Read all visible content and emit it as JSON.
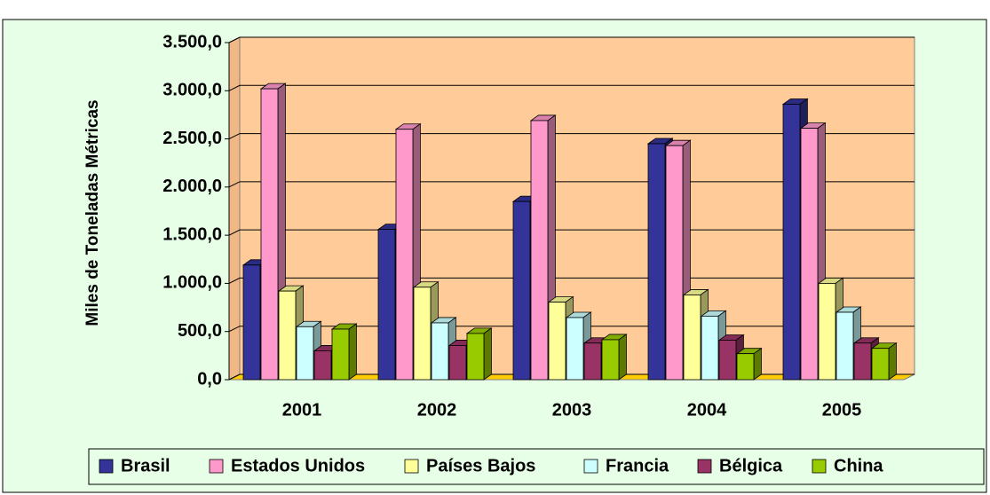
{
  "chart_data": {
    "type": "bar3d",
    "y_axis_label": "Miles de Toneladas Métricas",
    "categories": [
      "2001",
      "2002",
      "2003",
      "2004",
      "2005"
    ],
    "series": [
      {
        "name": "Brasil",
        "color": "#333399",
        "values": [
          1190,
          1560,
          1850,
          2450,
          2860
        ]
      },
      {
        "name": "Estados Unidos",
        "color": "#ff99cc",
        "values": [
          3020,
          2600,
          2690,
          2430,
          2610
        ]
      },
      {
        "name": "Países Bajos",
        "color": "#ffff99",
        "values": [
          920,
          960,
          805,
          880,
          1000
        ]
      },
      {
        "name": "Francia",
        "color": "#ccffff",
        "values": [
          550,
          590,
          645,
          660,
          700
        ]
      },
      {
        "name": "Bélgica",
        "color": "#993366",
        "values": [
          300,
          355,
          380,
          410,
          380
        ]
      },
      {
        "name": "China",
        "color": "#99cc00",
        "values": [
          525,
          480,
          415,
          270,
          325
        ]
      }
    ],
    "ylim": [
      0,
      3500
    ],
    "yticks": [
      {
        "value": 0,
        "label": "0,0"
      },
      {
        "value": 500,
        "label": "500,0"
      },
      {
        "value": 1000,
        "label": "1.000,0"
      },
      {
        "value": 1500,
        "label": "1.500,0"
      },
      {
        "value": 2000,
        "label": "2.000,0"
      },
      {
        "value": 2500,
        "label": "2.500,0"
      },
      {
        "value": 3000,
        "label": "3.000,0"
      },
      {
        "value": 3500,
        "label": "3.500,0"
      }
    ],
    "grid": true,
    "legend": "bottom"
  }
}
